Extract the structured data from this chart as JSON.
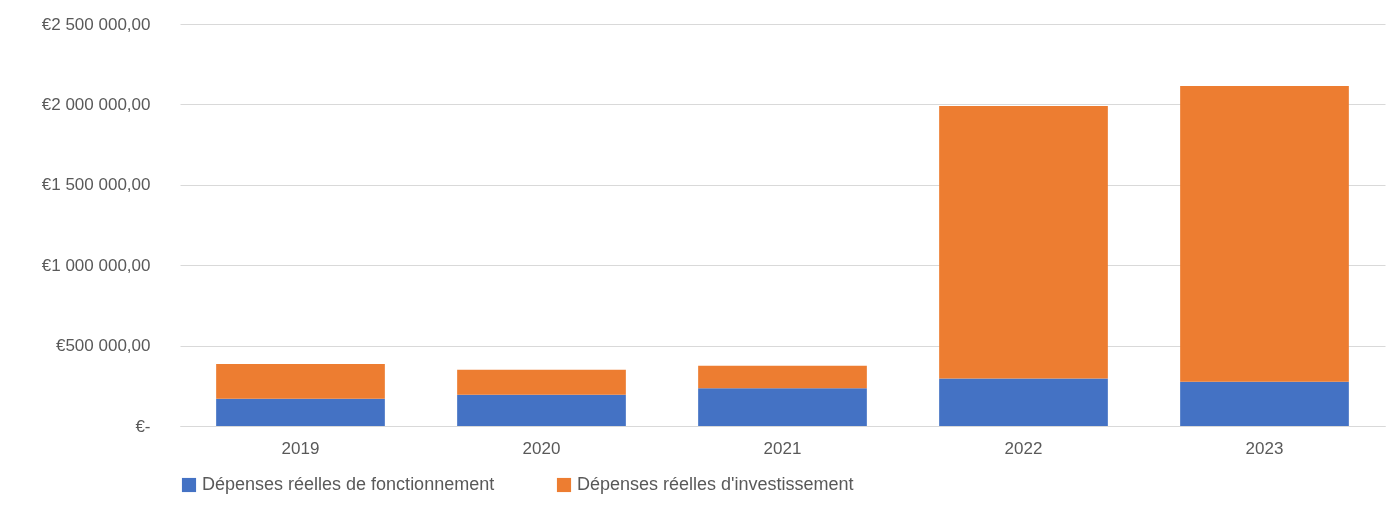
{
  "chart_data": {
    "type": "bar",
    "stacked": true,
    "categories": [
      "2019",
      "2020",
      "2021",
      "2022",
      "2023"
    ],
    "series": [
      {
        "name": "Dépenses réelles de fonctionnement",
        "color": "#4472c4",
        "values": [
          170000,
          195000,
          235000,
          295000,
          275000
        ]
      },
      {
        "name": "Dépenses réelles d'investissement",
        "color": "#ed7d31",
        "values": [
          215000,
          155000,
          140000,
          1695000,
          1840000
        ]
      }
    ],
    "ylim": [
      0,
      2500000
    ],
    "yticks": [
      {
        "value": 0,
        "label": "€-"
      },
      {
        "value": 500000,
        "label": "€500 000,00"
      },
      {
        "value": 1000000,
        "label": "€1 000 000,00"
      },
      {
        "value": 1500000,
        "label": "€1 500 000,00"
      },
      {
        "value": 2000000,
        "label": "€2 000 000,00"
      },
      {
        "value": 2500000,
        "label": "€2 500 000,00"
      }
    ],
    "grid": "y",
    "legend": "bottom"
  }
}
